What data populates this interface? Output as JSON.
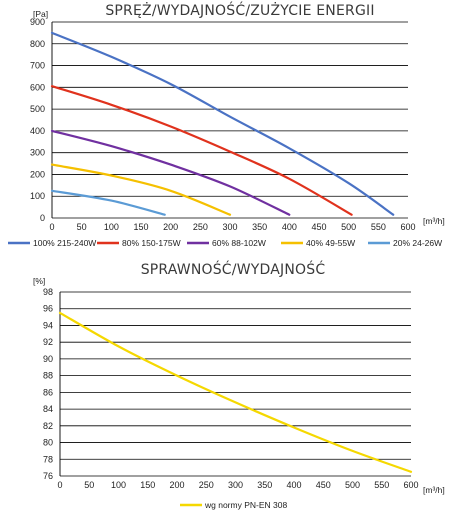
{
  "chart_data": [
    {
      "type": "line",
      "title": "SPRĘŻ/WYDAJNOŚĆ/ZUŻYCIE ENERGII",
      "ylabel": "[Pa]",
      "xlabel": "[m³/h]",
      "xlim": [
        0,
        600
      ],
      "ylim": [
        0,
        900
      ],
      "x_ticks": [
        "0",
        "50",
        "100",
        "150",
        "200",
        "250",
        "300",
        "350",
        "400",
        "450",
        "500",
        "550",
        "600"
      ],
      "y_ticks": [
        "0",
        "100",
        "200",
        "300",
        "400",
        "500",
        "600",
        "700",
        "800",
        "900"
      ],
      "grid": "horizontal",
      "legend_position": "bottom",
      "series": [
        {
          "name": "100% 215-240W",
          "color": "#4a72c4",
          "points": [
            [
              0,
              850
            ],
            [
              100,
              740
            ],
            [
              200,
              615
            ],
            [
              300,
              465
            ],
            [
              400,
              320
            ],
            [
              500,
              160
            ],
            [
              575,
              15
            ]
          ]
        },
        {
          "name": "80% 150-175W",
          "color": "#e0321d",
          "points": [
            [
              0,
              605
            ],
            [
              100,
              520
            ],
            [
              200,
              420
            ],
            [
              300,
              305
            ],
            [
              400,
              180
            ],
            [
              505,
              15
            ]
          ]
        },
        {
          "name": "60% 88-102W",
          "color": "#7030a0",
          "points": [
            [
              0,
              400
            ],
            [
              100,
              330
            ],
            [
              200,
              245
            ],
            [
              300,
              145
            ],
            [
              400,
              15
            ]
          ]
        },
        {
          "name": "40% 49-55W",
          "color": "#f5c000",
          "points": [
            [
              0,
              245
            ],
            [
              100,
              195
            ],
            [
              200,
              125
            ],
            [
              300,
              15
            ]
          ]
        },
        {
          "name": "20% 24-26W",
          "color": "#5b9bd5",
          "points": [
            [
              0,
              125
            ],
            [
              100,
              80
            ],
            [
              190,
              15
            ]
          ]
        }
      ]
    },
    {
      "type": "line",
      "title": "SPRAWNOŚĆ/WYDAJNOŚĆ",
      "ylabel": "[%]",
      "xlabel": "[m³/h]",
      "xlim": [
        0,
        600
      ],
      "ylim": [
        76,
        98
      ],
      "x_ticks": [
        "0",
        "50",
        "100",
        "150",
        "200",
        "250",
        "300",
        "350",
        "400",
        "450",
        "500",
        "550",
        "600"
      ],
      "y_ticks": [
        "76",
        "78",
        "80",
        "82",
        "84",
        "86",
        "88",
        "90",
        "92",
        "94",
        "96",
        "98"
      ],
      "grid": "horizontal",
      "legend_position": "bottom",
      "series": [
        {
          "name": "wg normy PN-EN 308",
          "color": "#f5d800",
          "points": [
            [
              0,
              95.5
            ],
            [
              100,
              91.5
            ],
            [
              200,
              88.0
            ],
            [
              300,
              84.8
            ],
            [
              400,
              81.8
            ],
            [
              500,
              79.0
            ],
            [
              600,
              76.5
            ]
          ]
        }
      ]
    }
  ]
}
